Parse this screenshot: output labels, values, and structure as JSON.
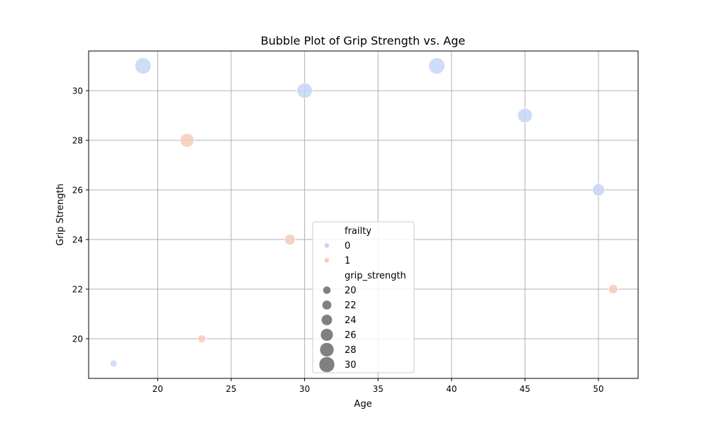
{
  "chart_data": {
    "type": "scatter",
    "title": "Bubble Plot of Grip Strength vs. Age",
    "xlabel": "Age",
    "ylabel": "Grip Strength",
    "xlim": [
      15.3,
      52.7
    ],
    "ylim": [
      18.4,
      31.6
    ],
    "xticks": [
      20,
      25,
      30,
      35,
      40,
      45,
      50
    ],
    "yticks": [
      20,
      22,
      24,
      26,
      28,
      30
    ],
    "grid": true,
    "legend_position": "lower-center",
    "hue_title": "frailty",
    "size_title": "grip_strength",
    "size_range": [
      19,
      31
    ],
    "series": [
      {
        "name": "0",
        "color": "#c5d6f7",
        "points": [
          {
            "x": 17,
            "y": 19
          },
          {
            "x": 19,
            "y": 31
          },
          {
            "x": 30,
            "y": 30
          },
          {
            "x": 39,
            "y": 31
          },
          {
            "x": 45,
            "y": 29
          },
          {
            "x": 50,
            "y": 26
          }
        ]
      },
      {
        "name": "1",
        "color": "#f6cbb7",
        "points": [
          {
            "x": 22,
            "y": 28
          },
          {
            "x": 23,
            "y": 20
          },
          {
            "x": 29,
            "y": 24
          },
          {
            "x": 51,
            "y": 22
          }
        ]
      }
    ],
    "size_legend": [
      {
        "label": "20",
        "value": 20
      },
      {
        "label": "22",
        "value": 22
      },
      {
        "label": "24",
        "value": 24
      },
      {
        "label": "26",
        "value": 26
      },
      {
        "label": "28",
        "value": 28
      },
      {
        "label": "30",
        "value": 30
      }
    ],
    "size_legend_color": "#808080"
  }
}
